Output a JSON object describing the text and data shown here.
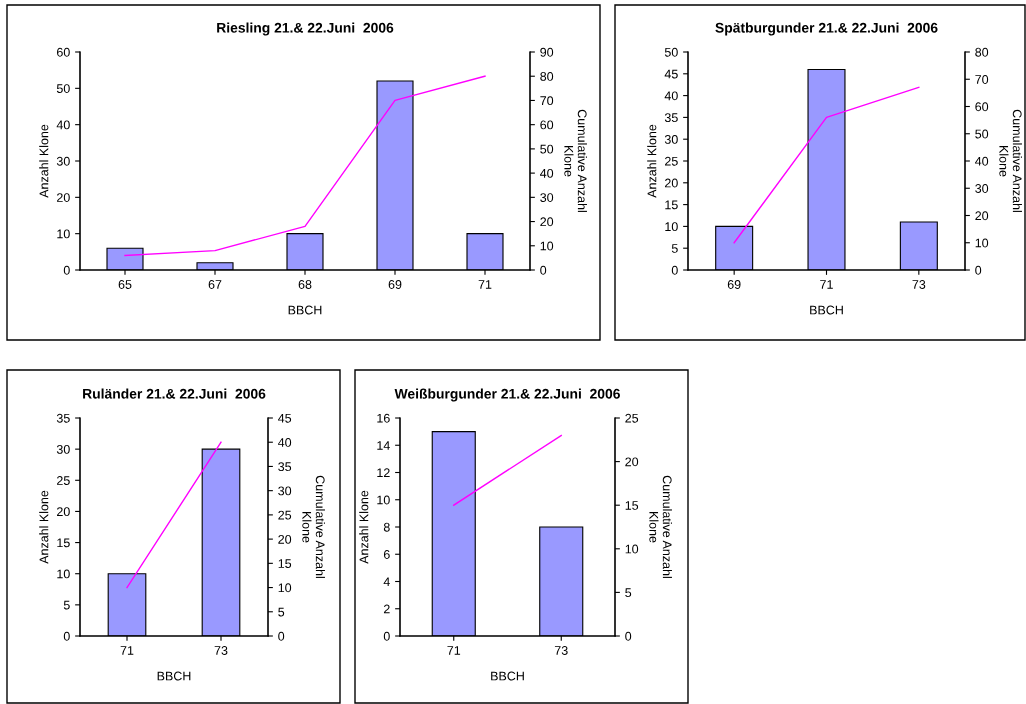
{
  "chart_data": [
    {
      "type": "bar",
      "title": "Riesling 21.& 22.Juni  2006",
      "xlabel": "BBCH",
      "ylabel": "Anzahl Klone",
      "y2label": "Cumulative Anzahl Klone",
      "categories": [
        "65",
        "67",
        "68",
        "69",
        "71"
      ],
      "series": [
        {
          "color": "#9999ff",
          "values": [
            6,
            2,
            10,
            52,
            10
          ]
        },
        {
          "type": "line",
          "axis": "y2",
          "color": "#ff00ff",
          "values": [
            6,
            8,
            18,
            70,
            80
          ]
        }
      ],
      "ylim": [
        0,
        60
      ],
      "yticks": [
        0,
        10,
        20,
        30,
        40,
        50,
        60
      ],
      "y2lim": [
        0,
        90
      ],
      "y2ticks": [
        0,
        10,
        20,
        30,
        40,
        50,
        60,
        70,
        80,
        90
      ]
    },
    {
      "type": "bar",
      "title": "Spätburgunder 21.& 22.Juni  2006",
      "xlabel": "BBCH",
      "ylabel": "Anzahl Klone",
      "y2label": "Cumulative Anzahl Klone",
      "categories": [
        "69",
        "71",
        "73"
      ],
      "series": [
        {
          "color": "#9999ff",
          "values": [
            10,
            46,
            11
          ]
        },
        {
          "type": "line",
          "axis": "y2",
          "color": "#ff00ff",
          "values": [
            10,
            56,
            67
          ]
        }
      ],
      "ylim": [
        0,
        50
      ],
      "yticks": [
        0,
        5,
        10,
        15,
        20,
        25,
        30,
        35,
        40,
        45,
        50
      ],
      "y2lim": [
        0,
        80
      ],
      "y2ticks": [
        0,
        10,
        20,
        30,
        40,
        50,
        60,
        70,
        80
      ]
    },
    {
      "type": "bar",
      "title": "Ruländer 21.& 22.Juni  2006",
      "xlabel": "BBCH",
      "ylabel": "Anzahl Klone",
      "y2label": "Cumulative Anzahl Klone",
      "categories": [
        "71",
        "73"
      ],
      "series": [
        {
          "color": "#9999ff",
          "values": [
            10,
            30
          ]
        },
        {
          "type": "line",
          "axis": "y2",
          "color": "#ff00ff",
          "values": [
            10,
            40
          ]
        }
      ],
      "ylim": [
        0,
        35
      ],
      "yticks": [
        0,
        5,
        10,
        15,
        20,
        25,
        30,
        35
      ],
      "y2lim": [
        0,
        45
      ],
      "y2ticks": [
        0,
        5,
        10,
        15,
        20,
        25,
        30,
        35,
        40,
        45
      ]
    },
    {
      "type": "bar",
      "title": "Weißburgunder 21.& 22.Juni  2006",
      "xlabel": "BBCH",
      "ylabel": "Anzahl Klone",
      "y2label": "Cumulative Anzahl Klone",
      "categories": [
        "71",
        "73"
      ],
      "series": [
        {
          "color": "#9999ff",
          "values": [
            15,
            8
          ]
        },
        {
          "type": "line",
          "axis": "y2",
          "color": "#ff00ff",
          "values": [
            15,
            23
          ]
        }
      ],
      "ylim": [
        0,
        16
      ],
      "yticks": [
        0,
        2,
        4,
        6,
        8,
        10,
        12,
        14,
        16
      ],
      "y2lim": [
        0,
        25
      ],
      "y2ticks": [
        0,
        5,
        10,
        15,
        20,
        25
      ]
    }
  ]
}
